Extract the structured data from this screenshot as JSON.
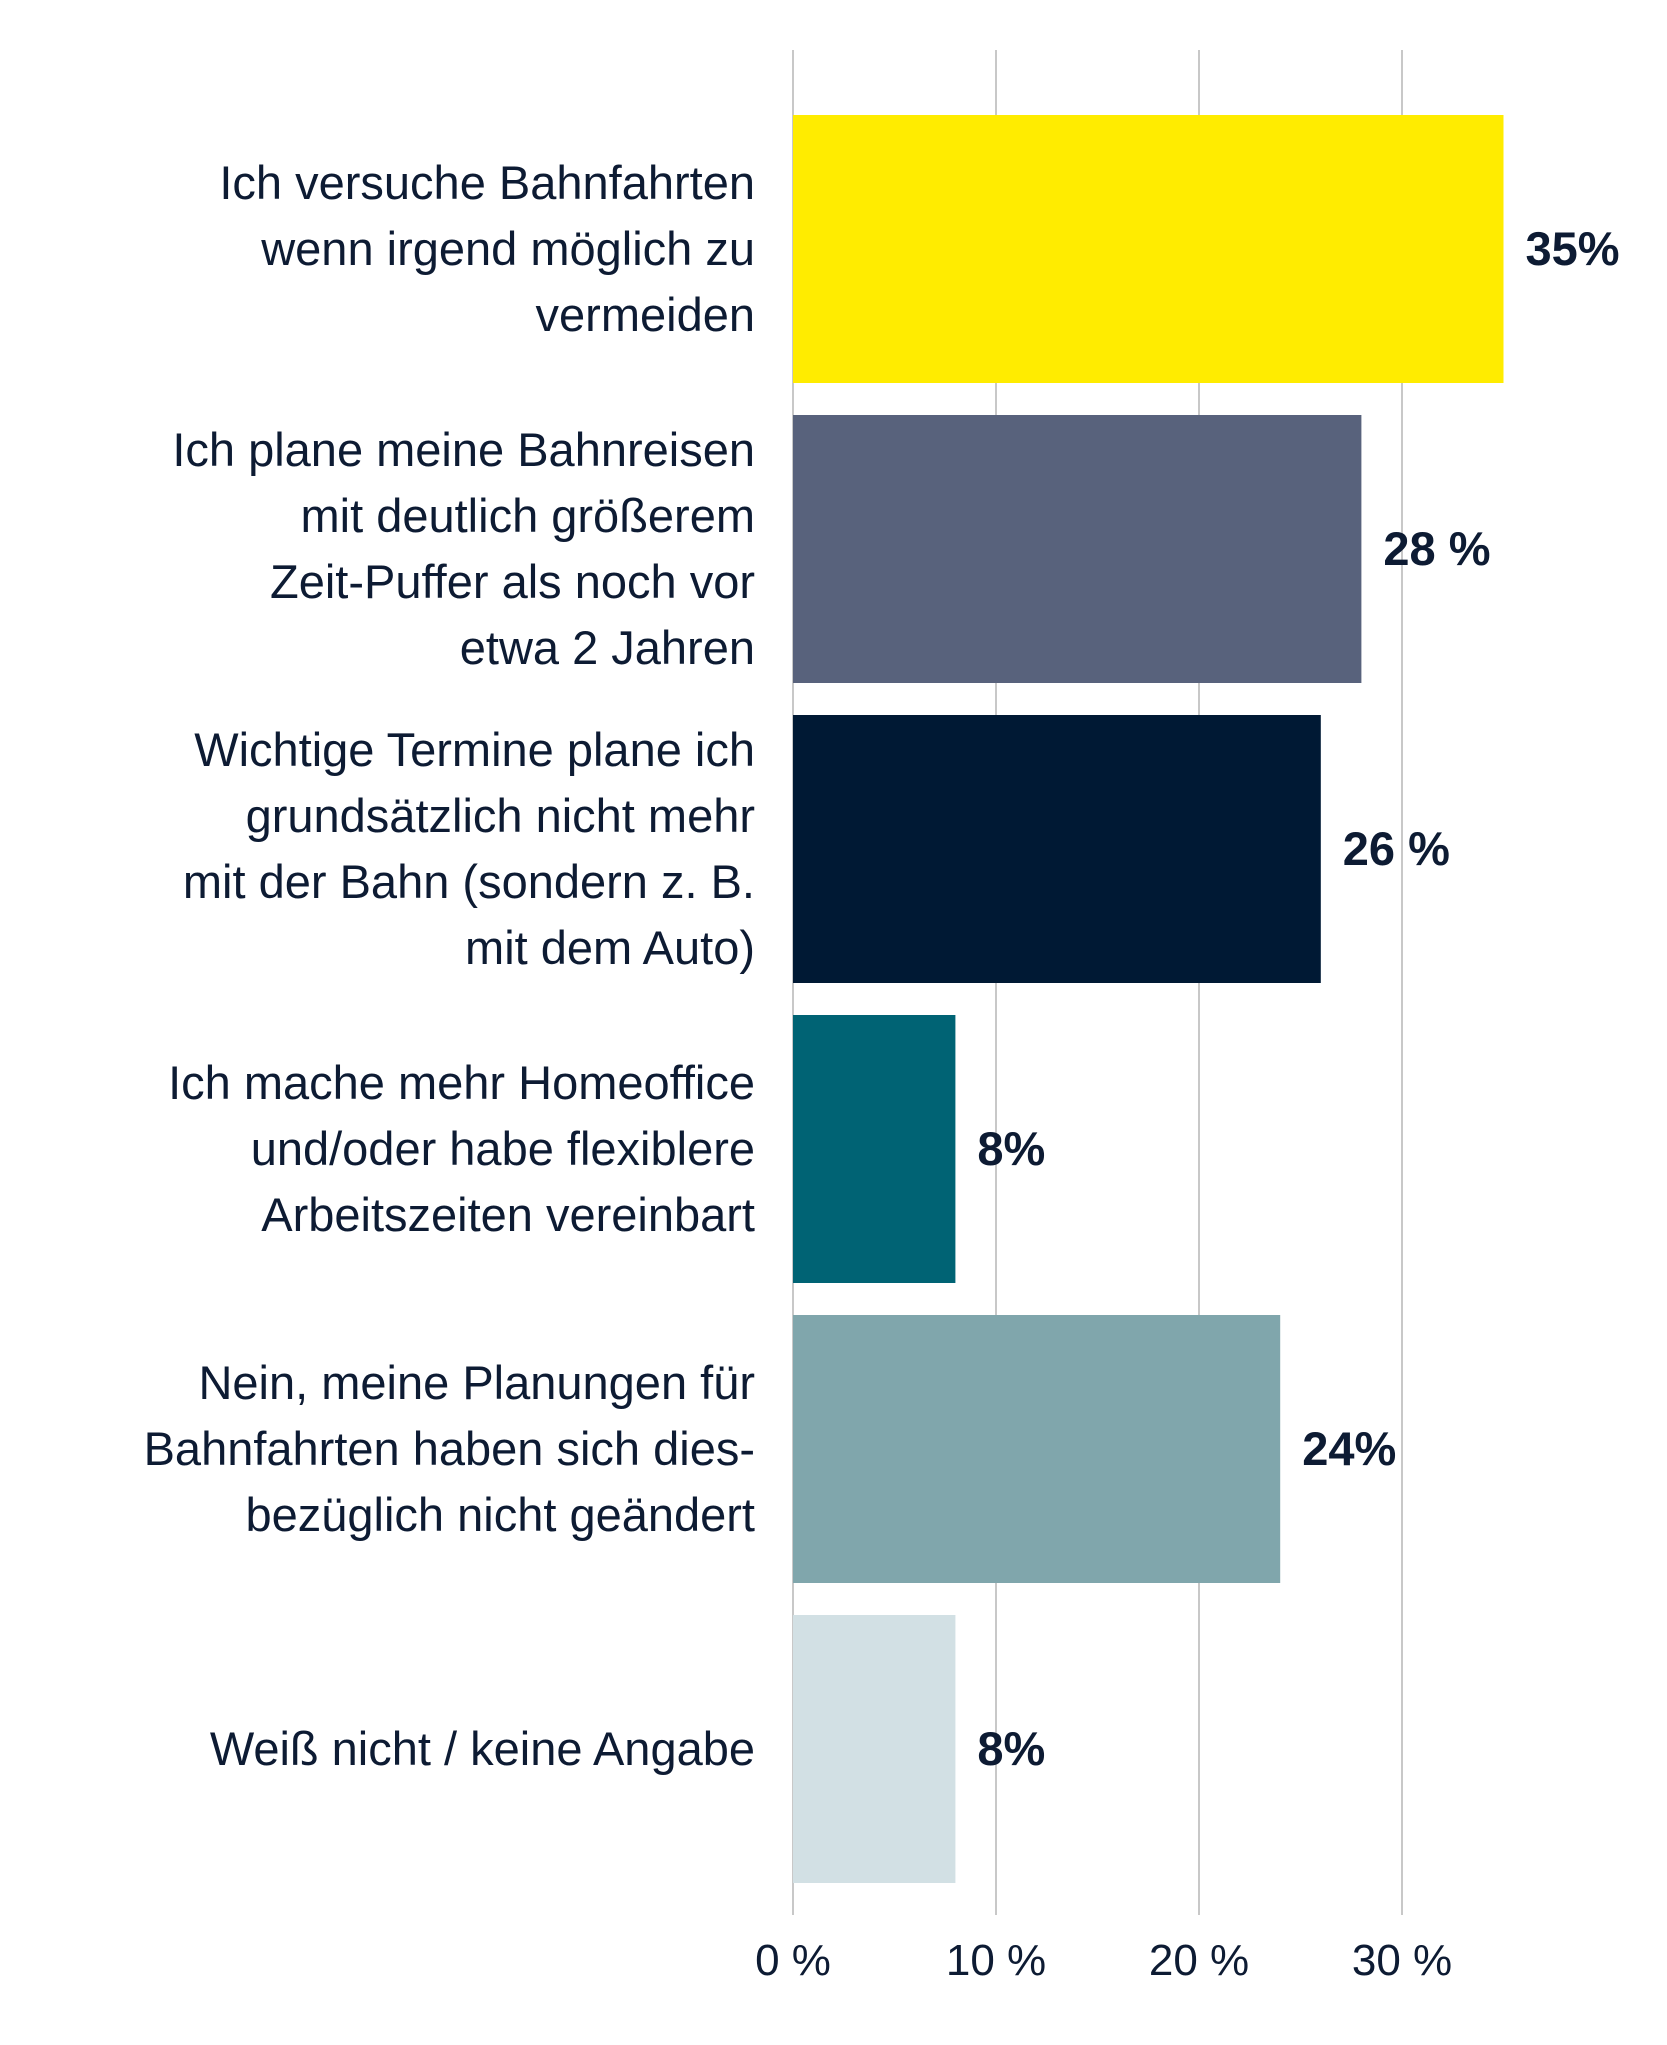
{
  "chart_data": {
    "type": "bar",
    "orientation": "horizontal",
    "categories": [
      [
        "Ich versuche Bahnfahrten",
        "wenn irgend möglich zu",
        "vermeiden"
      ],
      [
        "Ich plane meine Bahnreisen",
        "mit deutlich größerem",
        "Zeit-Puffer als noch vor",
        "etwa 2 Jahren"
      ],
      [
        "Wichtige Termine plane ich",
        "grundsätzlich nicht mehr",
        "mit der Bahn (sondern z. B.",
        "mit dem Auto)"
      ],
      [
        "Ich mache mehr Homeoffice",
        "und/oder  habe flexiblere",
        "Arbeitszeiten vereinbart"
      ],
      [
        "Nein, meine Planungen für",
        "Bahnfahrten haben sich dies-",
        "bezüglich nicht geändert"
      ],
      [
        "Weiß nicht / keine Angabe"
      ]
    ],
    "values": [
      35,
      28,
      26,
      8,
      24,
      8
    ],
    "value_labels": [
      "35%",
      "28 %",
      "26 %",
      "8%",
      "24%",
      "8%"
    ],
    "colors": [
      "#ffec00",
      "#58627c",
      "#001934",
      "#006374",
      "#80a6ac",
      "#d2e0e4"
    ],
    "xlim": [
      0,
      35
    ],
    "xticks": [
      0,
      10,
      20,
      30
    ],
    "xtick_labels": [
      "0 %",
      "10 %",
      "20 %",
      "30 %"
    ],
    "grid": true,
    "xlabel": "",
    "ylabel": "",
    "title": ""
  }
}
